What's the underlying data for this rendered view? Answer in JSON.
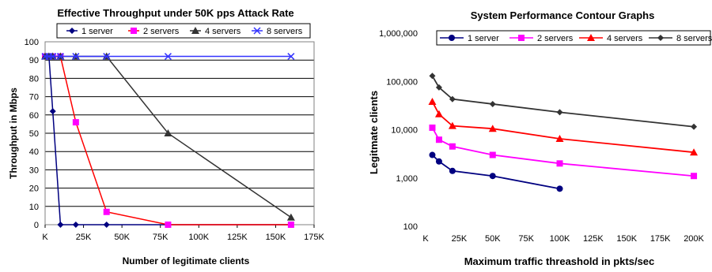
{
  "chart_data": [
    {
      "type": "line",
      "title": "Effective Throughput under 50K pps Attack Rate",
      "xlabel": "Number of legitimate clients",
      "ylabel": "Throughput in Mbps",
      "xlim": [
        0,
        175000
      ],
      "ylim": [
        0,
        100
      ],
      "x_ticks": [
        0,
        25000,
        50000,
        75000,
        100000,
        125000,
        150000,
        175000
      ],
      "x_tick_labels": [
        "K",
        "25K",
        "50K",
        "75K",
        "100K",
        "125K",
        "150K",
        "175K"
      ],
      "y_ticks": [
        0,
        10,
        20,
        30,
        40,
        50,
        60,
        70,
        80,
        90,
        100
      ],
      "y_tick_labels": [
        "0",
        "10",
        "20",
        "30",
        "40",
        "50",
        "60",
        "70",
        "80",
        "90",
        "100"
      ],
      "grid": "horizontal",
      "legend_position": "top",
      "series": [
        {
          "name": "1 server",
          "color": "#000080",
          "marker": "diamond",
          "points": [
            [
              0,
              92
            ],
            [
              2500,
              92
            ],
            [
              5000,
              62
            ],
            [
              10000,
              0
            ],
            [
              20000,
              0
            ],
            [
              40000,
              0
            ],
            [
              80000,
              0
            ],
            [
              160000,
              0
            ]
          ]
        },
        {
          "name": "2 servers",
          "color": "#ff00ff",
          "line_color": "#ff0000",
          "marker": "square",
          "points": [
            [
              0,
              92
            ],
            [
              2500,
              92
            ],
            [
              5000,
              92
            ],
            [
              10000,
              92
            ],
            [
              20000,
              56
            ],
            [
              40000,
              7
            ],
            [
              80000,
              0
            ],
            [
              160000,
              0
            ]
          ]
        },
        {
          "name": "4 servers",
          "color": "#333333",
          "marker": "triangle",
          "points": [
            [
              0,
              92
            ],
            [
              2500,
              92
            ],
            [
              5000,
              92
            ],
            [
              10000,
              92
            ],
            [
              20000,
              92
            ],
            [
              40000,
              92
            ],
            [
              80000,
              50
            ],
            [
              160000,
              4
            ]
          ]
        },
        {
          "name": "8 servers",
          "color": "#3333ff",
          "marker": "x",
          "points": [
            [
              0,
              92
            ],
            [
              2500,
              92
            ],
            [
              5000,
              92
            ],
            [
              10000,
              92
            ],
            [
              20000,
              92
            ],
            [
              40000,
              92
            ],
            [
              80000,
              92
            ],
            [
              160000,
              92
            ]
          ]
        }
      ]
    },
    {
      "type": "line",
      "title": "System Performance Contour Graphs",
      "xlabel": "Maximum traffic threashold in pkts/sec",
      "ylabel": "Legitmate clients",
      "xlim": [
        0,
        210000
      ],
      "ylim": [
        100,
        1000000
      ],
      "yscale": "log",
      "x_ticks": [
        0,
        25000,
        50000,
        75000,
        100000,
        125000,
        150000,
        175000,
        200000
      ],
      "x_tick_labels": [
        "K",
        "25K",
        "50K",
        "75K",
        "100K",
        "125K",
        "150K",
        "175K",
        "200K"
      ],
      "y_ticks": [
        100,
        1000,
        10000,
        100000,
        1000000
      ],
      "y_tick_labels": [
        "100",
        "1,000",
        "10,000",
        "100,000",
        "1,000,000"
      ],
      "grid": "none",
      "legend_position": "top",
      "series": [
        {
          "name": "1 server",
          "color": "#000080",
          "marker": "circle",
          "points": [
            [
              5000,
              3000
            ],
            [
              10000,
              2200
            ],
            [
              20000,
              1400
            ],
            [
              50000,
              1100
            ],
            [
              100000,
              600
            ]
          ]
        },
        {
          "name": "2 servers",
          "color": "#ff00ff",
          "marker": "square",
          "points": [
            [
              5000,
              11000
            ],
            [
              10000,
              6200
            ],
            [
              20000,
              4500
            ],
            [
              50000,
              3000
            ],
            [
              100000,
              2000
            ],
            [
              200000,
              1100
            ]
          ]
        },
        {
          "name": "4 servers",
          "color": "#ff0000",
          "marker": "triangle",
          "points": [
            [
              5000,
              38000
            ],
            [
              10000,
              21000
            ],
            [
              20000,
              12000
            ],
            [
              50000,
              10500
            ],
            [
              100000,
              6500
            ],
            [
              200000,
              3400
            ]
          ]
        },
        {
          "name": "8 servers",
          "color": "#333333",
          "marker": "diamond",
          "points": [
            [
              5000,
              130000
            ],
            [
              10000,
              75000
            ],
            [
              20000,
              43000
            ],
            [
              50000,
              34000
            ],
            [
              100000,
              23000
            ],
            [
              200000,
              11500
            ]
          ]
        }
      ]
    }
  ]
}
